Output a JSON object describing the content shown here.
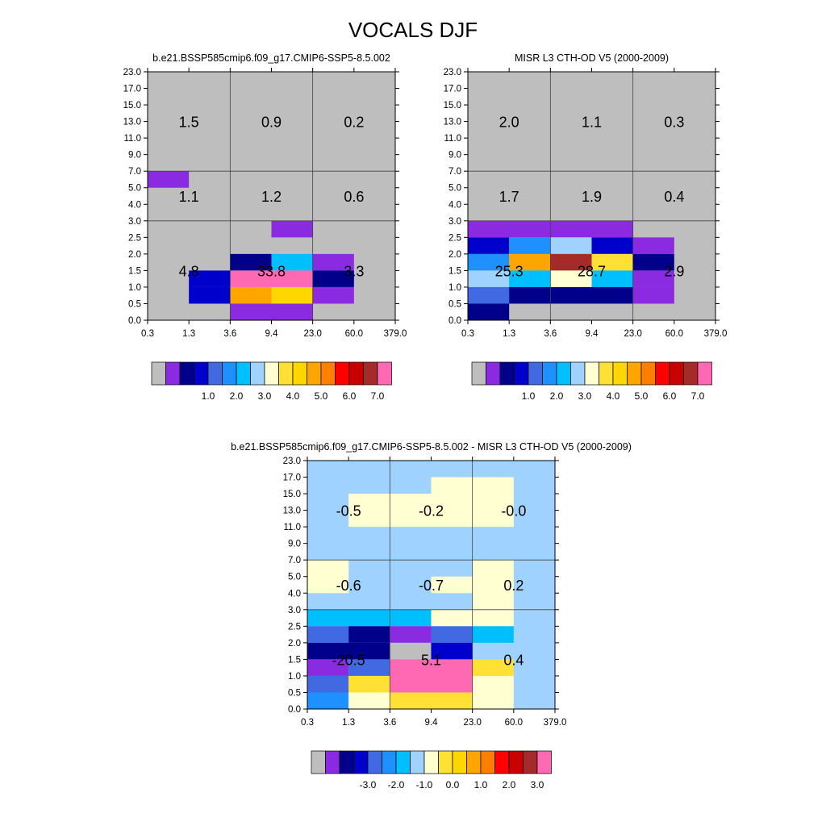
{
  "main_title": "VOCALS DJF",
  "chart_data": [
    {
      "type": "heatmap",
      "title": "b.e21.BSSP585cmip6.f09_g17.CMIP6-SSP5-8.5.002",
      "x_ticks": [
        "0.3",
        "1.3",
        "3.6",
        "9.4",
        "23.0",
        "60.0",
        "379.0"
      ],
      "y_ticks": [
        "0.0",
        "0.5",
        "1.0",
        "1.5",
        "2.0",
        "2.5",
        "3.0",
        "4.0",
        "5.0",
        "7.0",
        "9.0",
        "11.0",
        "13.0",
        "15.0",
        "17.0",
        "23.0"
      ],
      "grid": true,
      "cells": [
        {
          "x0": 0.3,
          "x1": 1.3,
          "y0": 5.0,
          "y1": 7.0,
          "c": 1
        },
        {
          "x0": 9.4,
          "x1": 23.0,
          "y0": 2.5,
          "y1": 3.0,
          "c": 1
        },
        {
          "x0": 3.6,
          "x1": 9.4,
          "y0": 1.5,
          "y1": 2.0,
          "c": 2
        },
        {
          "x0": 9.4,
          "x1": 23.0,
          "y0": 1.5,
          "y1": 2.0,
          "c": 6
        },
        {
          "x0": 23.0,
          "x1": 60.0,
          "y0": 1.5,
          "y1": 2.0,
          "c": 1
        },
        {
          "x0": 1.3,
          "x1": 3.6,
          "y0": 1.0,
          "y1": 1.5,
          "c": 3
        },
        {
          "x0": 3.6,
          "x1": 23.0,
          "y0": 1.0,
          "y1": 1.5,
          "c": 16
        },
        {
          "x0": 23.0,
          "x1": 60.0,
          "y0": 1.0,
          "y1": 1.5,
          "c": 2
        },
        {
          "x0": 1.3,
          "x1": 3.6,
          "y0": 0.5,
          "y1": 1.0,
          "c": 3
        },
        {
          "x0": 3.6,
          "x1": 9.4,
          "y0": 0.5,
          "y1": 1.0,
          "c": 11
        },
        {
          "x0": 9.4,
          "x1": 23.0,
          "y0": 0.5,
          "y1": 1.0,
          "c": 10
        },
        {
          "x0": 23.0,
          "x1": 60.0,
          "y0": 0.5,
          "y1": 1.0,
          "c": 1
        },
        {
          "x0": 3.6,
          "x1": 23.0,
          "y0": 0.0,
          "y1": 0.5,
          "c": 1
        }
      ],
      "labels": [
        {
          "x0": 0.3,
          "x1": 3.6,
          "y0": 7.0,
          "y1": 23.0,
          "text": "1.5"
        },
        {
          "x0": 3.6,
          "x1": 23.0,
          "y0": 7.0,
          "y1": 23.0,
          "text": "0.9"
        },
        {
          "x0": 23.0,
          "x1": 379.0,
          "y0": 7.0,
          "y1": 23.0,
          "text": "0.2"
        },
        {
          "x0": 0.3,
          "x1": 3.6,
          "y0": 3.0,
          "y1": 7.0,
          "text": "1.1"
        },
        {
          "x0": 3.6,
          "x1": 23.0,
          "y0": 3.0,
          "y1": 7.0,
          "text": "1.2"
        },
        {
          "x0": 23.0,
          "x1": 379.0,
          "y0": 3.0,
          "y1": 7.0,
          "text": "0.6"
        },
        {
          "x0": 0.3,
          "x1": 3.6,
          "y0": 0.0,
          "y1": 3.0,
          "text": "4.8"
        },
        {
          "x0": 3.6,
          "x1": 23.0,
          "y0": 0.0,
          "y1": 3.0,
          "text": "33.8"
        },
        {
          "x0": 23.0,
          "x1": 379.0,
          "y0": 0.0,
          "y1": 3.0,
          "text": "3.3"
        }
      ],
      "colorbar": {
        "colors": [
          "#bebebe",
          "#8a2be2",
          "#00008b",
          "#0000cd",
          "#4169e1",
          "#1e90ff",
          "#00bfff",
          "#a0d2ff",
          "#ffffd1",
          "#ffe135",
          "#ffd700",
          "#ffa500",
          "#ff7f00",
          "#ff0000",
          "#c80000",
          "#a52a2a",
          "#ff69b4"
        ],
        "labels": [
          "1.0",
          "2.0",
          "3.0",
          "4.0",
          "5.0",
          "6.0",
          "7.0"
        ]
      }
    },
    {
      "type": "heatmap",
      "title": "MISR L3 CTH-OD V5 (2000-2009)",
      "x_ticks": [
        "0.3",
        "1.3",
        "3.6",
        "9.4",
        "23.0",
        "60.0",
        "379.0"
      ],
      "y_ticks": [
        "0.0",
        "0.5",
        "1.0",
        "1.5",
        "2.0",
        "2.5",
        "3.0",
        "4.0",
        "5.0",
        "7.0",
        "9.0",
        "11.0",
        "13.0",
        "15.0",
        "17.0",
        "23.0"
      ],
      "grid": true,
      "cells": [
        {
          "x0": 0.3,
          "x1": 23.0,
          "y0": 2.5,
          "y1": 3.0,
          "c": 1
        },
        {
          "x0": 0.3,
          "x1": 1.3,
          "y0": 2.0,
          "y1": 2.5,
          "c": 3
        },
        {
          "x0": 1.3,
          "x1": 3.6,
          "y0": 2.0,
          "y1": 2.5,
          "c": 5
        },
        {
          "x0": 3.6,
          "x1": 9.4,
          "y0": 2.0,
          "y1": 2.5,
          "c": 7
        },
        {
          "x0": 9.4,
          "x1": 23.0,
          "y0": 2.0,
          "y1": 2.5,
          "c": 3
        },
        {
          "x0": 23.0,
          "x1": 60.0,
          "y0": 2.0,
          "y1": 2.5,
          "c": 1
        },
        {
          "x0": 0.3,
          "x1": 1.3,
          "y0": 1.5,
          "y1": 2.0,
          "c": 5
        },
        {
          "x0": 1.3,
          "x1": 3.6,
          "y0": 1.5,
          "y1": 2.0,
          "c": 11
        },
        {
          "x0": 3.6,
          "x1": 9.4,
          "y0": 1.5,
          "y1": 2.0,
          "c": 15
        },
        {
          "x0": 9.4,
          "x1": 23.0,
          "y0": 1.5,
          "y1": 2.0,
          "c": 9
        },
        {
          "x0": 23.0,
          "x1": 60.0,
          "y0": 1.5,
          "y1": 2.0,
          "c": 2
        },
        {
          "x0": 0.3,
          "x1": 1.3,
          "y0": 1.0,
          "y1": 1.5,
          "c": 7
        },
        {
          "x0": 1.3,
          "x1": 3.6,
          "y0": 1.0,
          "y1": 1.5,
          "c": 6
        },
        {
          "x0": 3.6,
          "x1": 9.4,
          "y0": 1.0,
          "y1": 1.5,
          "c": 8
        },
        {
          "x0": 9.4,
          "x1": 23.0,
          "y0": 1.0,
          "y1": 1.5,
          "c": 6
        },
        {
          "x0": 23.0,
          "x1": 60.0,
          "y0": 1.0,
          "y1": 1.5,
          "c": 1
        },
        {
          "x0": 0.3,
          "x1": 1.3,
          "y0": 0.5,
          "y1": 1.0,
          "c": 4
        },
        {
          "x0": 1.3,
          "x1": 23.0,
          "y0": 0.5,
          "y1": 1.0,
          "c": 2
        },
        {
          "x0": 23.0,
          "x1": 60.0,
          "y0": 0.5,
          "y1": 1.0,
          "c": 1
        },
        {
          "x0": 0.3,
          "x1": 1.3,
          "y0": 0.0,
          "y1": 0.5,
          "c": 2
        }
      ],
      "labels": [
        {
          "x0": 0.3,
          "x1": 3.6,
          "y0": 7.0,
          "y1": 23.0,
          "text": "2.0"
        },
        {
          "x0": 3.6,
          "x1": 23.0,
          "y0": 7.0,
          "y1": 23.0,
          "text": "1.1"
        },
        {
          "x0": 23.0,
          "x1": 379.0,
          "y0": 7.0,
          "y1": 23.0,
          "text": "0.3"
        },
        {
          "x0": 0.3,
          "x1": 3.6,
          "y0": 3.0,
          "y1": 7.0,
          "text": "1.7"
        },
        {
          "x0": 3.6,
          "x1": 23.0,
          "y0": 3.0,
          "y1": 7.0,
          "text": "1.9"
        },
        {
          "x0": 23.0,
          "x1": 379.0,
          "y0": 3.0,
          "y1": 7.0,
          "text": "0.4"
        },
        {
          "x0": 0.3,
          "x1": 3.6,
          "y0": 0.0,
          "y1": 3.0,
          "text": "25.3"
        },
        {
          "x0": 3.6,
          "x1": 23.0,
          "y0": 0.0,
          "y1": 3.0,
          "text": "28.7"
        },
        {
          "x0": 23.0,
          "x1": 379.0,
          "y0": 0.0,
          "y1": 3.0,
          "text": "2.9"
        }
      ],
      "colorbar": {
        "colors": [
          "#bebebe",
          "#8a2be2",
          "#00008b",
          "#0000cd",
          "#4169e1",
          "#1e90ff",
          "#00bfff",
          "#a0d2ff",
          "#ffffd1",
          "#ffe135",
          "#ffd700",
          "#ffa500",
          "#ff7f00",
          "#ff0000",
          "#c80000",
          "#a52a2a",
          "#ff69b4"
        ],
        "labels": [
          "1.0",
          "2.0",
          "3.0",
          "4.0",
          "5.0",
          "6.0",
          "7.0"
        ]
      }
    },
    {
      "type": "heatmap",
      "title": "b.e21.BSSP585cmip6.f09_g17.CMIP6-SSP5-8.5.002 - MISR L3 CTH-OD V5 (2000-2009)",
      "x_ticks": [
        "0.3",
        "1.3",
        "3.6",
        "9.4",
        "23.0",
        "60.0",
        "379.0"
      ],
      "y_ticks": [
        "0.0",
        "0.5",
        "1.0",
        "1.5",
        "2.0",
        "2.5",
        "3.0",
        "4.0",
        "5.0",
        "7.0",
        "9.0",
        "11.0",
        "13.0",
        "15.0",
        "17.0",
        "23.0"
      ],
      "grid": true,
      "cells": [
        {
          "x0": 0.3,
          "x1": 379.0,
          "y0": 0.0,
          "y1": 23.0,
          "c": 7
        },
        {
          "x0": 1.3,
          "x1": 9.4,
          "y0": 11.0,
          "y1": 15.0,
          "c": 8
        },
        {
          "x0": 9.4,
          "x1": 60.0,
          "y0": 11.0,
          "y1": 17.0,
          "c": 8
        },
        {
          "x0": 0.3,
          "x1": 1.3,
          "y0": 4.0,
          "y1": 7.0,
          "c": 8
        },
        {
          "x0": 9.4,
          "x1": 23.0,
          "y0": 4.0,
          "y1": 5.0,
          "c": 8
        },
        {
          "x0": 23.0,
          "x1": 60.0,
          "y0": 2.5,
          "y1": 7.0,
          "c": 8
        },
        {
          "x0": 0.3,
          "x1": 9.4,
          "y0": 2.5,
          "y1": 3.0,
          "c": 6
        },
        {
          "x0": 9.4,
          "x1": 23.0,
          "y0": 2.5,
          "y1": 3.0,
          "c": 8
        },
        {
          "x0": 0.3,
          "x1": 1.3,
          "y0": 2.0,
          "y1": 2.5,
          "c": 4
        },
        {
          "x0": 1.3,
          "x1": 3.6,
          "y0": 2.0,
          "y1": 2.5,
          "c": 2
        },
        {
          "x0": 3.6,
          "x1": 9.4,
          "y0": 2.0,
          "y1": 2.5,
          "c": 1
        },
        {
          "x0": 9.4,
          "x1": 23.0,
          "y0": 2.0,
          "y1": 2.5,
          "c": 4
        },
        {
          "x0": 23.0,
          "x1": 60.0,
          "y0": 2.0,
          "y1": 2.5,
          "c": 6
        },
        {
          "x0": 0.3,
          "x1": 3.6,
          "y0": 1.5,
          "y1": 2.0,
          "c": 2
        },
        {
          "x0": 3.6,
          "x1": 9.4,
          "y0": 1.5,
          "y1": 2.0,
          "c": 0
        },
        {
          "x0": 9.4,
          "x1": 23.0,
          "y0": 1.5,
          "y1": 2.0,
          "c": 3
        },
        {
          "x0": 0.3,
          "x1": 1.3,
          "y0": 1.0,
          "y1": 1.5,
          "c": 1
        },
        {
          "x0": 1.3,
          "x1": 3.6,
          "y0": 1.0,
          "y1": 1.5,
          "c": 4
        },
        {
          "x0": 3.6,
          "x1": 23.0,
          "y0": 0.5,
          "y1": 1.5,
          "c": 16
        },
        {
          "x0": 23.0,
          "x1": 60.0,
          "y0": 1.0,
          "y1": 1.5,
          "c": 9
        },
        {
          "x0": 0.3,
          "x1": 1.3,
          "y0": 0.5,
          "y1": 1.0,
          "c": 4
        },
        {
          "x0": 1.3,
          "x1": 3.6,
          "y0": 0.5,
          "y1": 1.0,
          "c": 9
        },
        {
          "x0": 23.0,
          "x1": 60.0,
          "y0": 0.0,
          "y1": 1.0,
          "c": 8
        },
        {
          "x0": 0.3,
          "x1": 1.3,
          "y0": 0.0,
          "y1": 0.5,
          "c": 5
        },
        {
          "x0": 1.3,
          "x1": 3.6,
          "y0": 0.0,
          "y1": 0.5,
          "c": 8
        },
        {
          "x0": 3.6,
          "x1": 23.0,
          "y0": 0.0,
          "y1": 0.5,
          "c": 9
        }
      ],
      "labels": [
        {
          "x0": 0.3,
          "x1": 3.6,
          "y0": 7.0,
          "y1": 23.0,
          "text": "-0.5"
        },
        {
          "x0": 3.6,
          "x1": 23.0,
          "y0": 7.0,
          "y1": 23.0,
          "text": "-0.2"
        },
        {
          "x0": 23.0,
          "x1": 379.0,
          "y0": 7.0,
          "y1": 23.0,
          "text": "-0.0"
        },
        {
          "x0": 0.3,
          "x1": 3.6,
          "y0": 3.0,
          "y1": 7.0,
          "text": "-0.6"
        },
        {
          "x0": 3.6,
          "x1": 23.0,
          "y0": 3.0,
          "y1": 7.0,
          "text": "-0.7"
        },
        {
          "x0": 23.0,
          "x1": 379.0,
          "y0": 3.0,
          "y1": 7.0,
          "text": "0.2"
        },
        {
          "x0": 0.3,
          "x1": 3.6,
          "y0": 0.0,
          "y1": 3.0,
          "text": "-20.5"
        },
        {
          "x0": 3.6,
          "x1": 23.0,
          "y0": 0.0,
          "y1": 3.0,
          "text": "5.1"
        },
        {
          "x0": 23.0,
          "x1": 379.0,
          "y0": 0.0,
          "y1": 3.0,
          "text": "0.4"
        }
      ],
      "colorbar": {
        "colors": [
          "#bebebe",
          "#8a2be2",
          "#00008b",
          "#0000cd",
          "#4169e1",
          "#1e90ff",
          "#00bfff",
          "#a0d2ff",
          "#ffffd1",
          "#ffe135",
          "#ffd700",
          "#ffa500",
          "#ff7f00",
          "#ff0000",
          "#c80000",
          "#a52a2a",
          "#ff69b4"
        ],
        "labels": [
          "-3.0",
          "-2.0",
          "-1.0",
          "0.0",
          "1.0",
          "2.0",
          "3.0"
        ]
      }
    }
  ]
}
